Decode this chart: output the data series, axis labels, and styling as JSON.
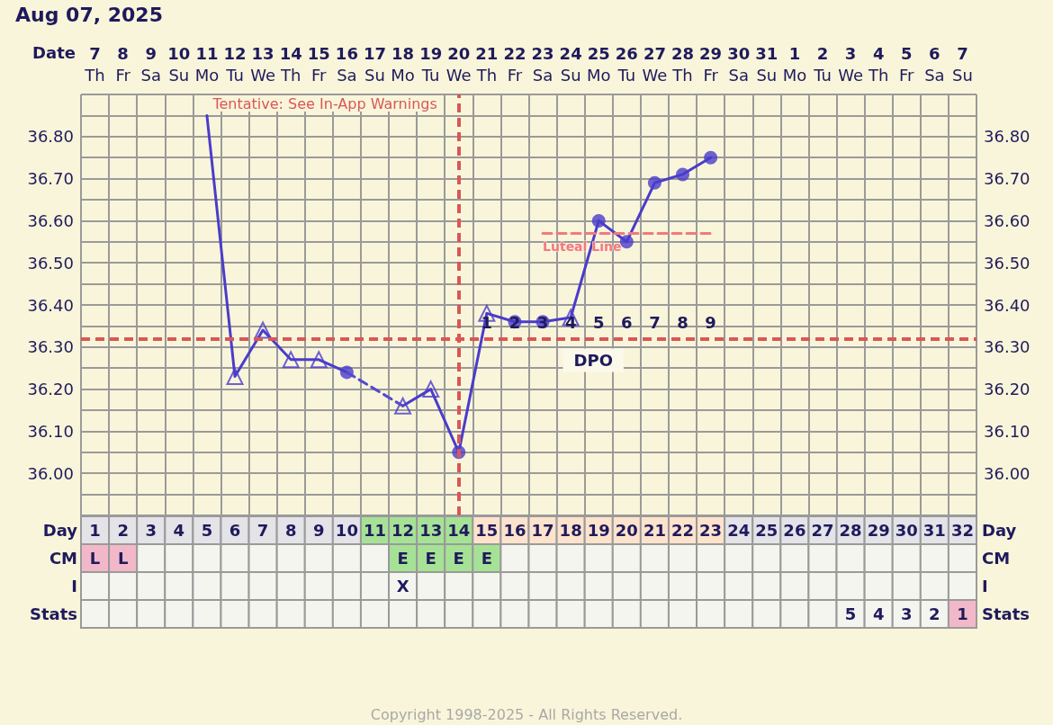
{
  "chart_data": [
    {
      "type": "line",
      "title": "Aug 07, 2025",
      "xlabel": "Date",
      "categories": [
        "7\nTh",
        "8\nFr",
        "9\nSa",
        "10\nSu",
        "11\nMo",
        "12\nTu",
        "13\nWe",
        "14\nTh",
        "15\nFr",
        "16\nSa",
        "17\nSu",
        "18\nMo",
        "19\nTu",
        "20\nWe",
        "21\nTh",
        "22\nFr",
        "23\nSa",
        "24\nSu",
        "25\nMo",
        "26\nTu",
        "27\nWe",
        "28\nTh",
        "29\nFr",
        "30\nSa",
        "31\nSu",
        "1\nMo",
        "2\nTu",
        "3\nWe",
        "4\nTh",
        "5\nFr",
        "6\nSa",
        "7\nSu"
      ],
      "ylim": [
        35.9,
        36.9
      ],
      "yticks": [
        {
          "value": 35.9,
          "label": null
        },
        {
          "value": 35.95,
          "label": null
        },
        {
          "value": 36.0,
          "label": "36.00"
        },
        {
          "value": 36.05,
          "label": null
        },
        {
          "value": 36.1,
          "label": "36.10"
        },
        {
          "value": 36.15,
          "label": null
        },
        {
          "value": 36.2,
          "label": "36.20"
        },
        {
          "value": 36.25,
          "label": null
        },
        {
          "value": 36.3,
          "label": "36.30"
        },
        {
          "value": 36.35,
          "label": null
        },
        {
          "value": 36.4,
          "label": "36.40"
        },
        {
          "value": 36.45,
          "label": null
        },
        {
          "value": 36.5,
          "label": "36.50"
        },
        {
          "value": 36.55,
          "label": null
        },
        {
          "value": 36.6,
          "label": "36.60"
        },
        {
          "value": 36.65,
          "label": null
        },
        {
          "value": 36.7,
          "label": "36.70"
        },
        {
          "value": 36.75,
          "label": null
        },
        {
          "value": 36.8,
          "label": "36.80"
        },
        {
          "value": 36.85,
          "label": null
        },
        {
          "value": 36.9,
          "label": null
        }
      ],
      "y2lim": [
        35.9,
        36.9
      ],
      "y2ticks": [
        {
          "value": 35.9,
          "label": null
        },
        {
          "value": 35.95,
          "label": null
        },
        {
          "value": 36.0,
          "label": "36.00"
        },
        {
          "value": 36.05,
          "label": null
        },
        {
          "value": 36.1,
          "label": "36.10"
        },
        {
          "value": 36.15,
          "label": null
        },
        {
          "value": 36.2,
          "label": "36.20"
        },
        {
          "value": 36.25,
          "label": null
        },
        {
          "value": 36.3,
          "label": "36.30"
        },
        {
          "value": 36.35,
          "label": null
        },
        {
          "value": 36.4,
          "label": "36.40"
        },
        {
          "value": 36.45,
          "label": null
        },
        {
          "value": 36.5,
          "label": "36.50"
        },
        {
          "value": 36.55,
          "label": null
        },
        {
          "value": 36.6,
          "label": "36.60"
        },
        {
          "value": 36.65,
          "label": null
        },
        {
          "value": 36.7,
          "label": "36.70"
        },
        {
          "value": 36.75,
          "label": null
        },
        {
          "value": 36.8,
          "label": "36.80"
        },
        {
          "value": 36.85,
          "label": null
        },
        {
          "value": 36.9,
          "label": null
        }
      ],
      "grid": true,
      "series": [
        {
          "color": "#4a3ccb",
          "marker": "none",
          "line_style": "solid",
          "values": [
            null,
            null,
            null,
            null,
            36.85,
            36.23,
            36.34,
            36.27,
            36.27,
            36.24,
            null,
            36.16,
            36.2,
            36.05,
            36.38,
            36.36,
            36.36,
            36.37,
            36.6,
            36.55,
            36.69,
            36.71,
            36.75,
            null,
            null,
            null,
            null,
            null,
            null,
            null,
            null,
            null
          ]
        },
        {
          "color": "#5549cf",
          "marker": "none",
          "line_style": "dashed",
          "x": [
            "16\nSa",
            "18\nMo"
          ],
          "values": [
            36.24,
            36.16
          ]
        },
        {
          "type": "scatter",
          "color": "#4a3ccb",
          "marker": "triangle",
          "values": [
            null,
            null,
            null,
            null,
            null,
            36.23,
            36.34,
            36.27,
            36.27,
            null,
            null,
            36.16,
            36.2,
            null,
            36.38,
            null,
            null,
            36.37,
            null,
            null,
            null,
            null,
            null,
            null,
            null,
            null,
            null,
            null,
            null,
            null,
            null,
            null
          ]
        },
        {
          "type": "scatter",
          "color": "#4a3ccb",
          "marker": "circle",
          "values": [
            null,
            null,
            null,
            null,
            null,
            null,
            null,
            null,
            null,
            36.24,
            null,
            null,
            null,
            36.05,
            null,
            36.36,
            36.36,
            null,
            36.6,
            36.55,
            36.69,
            36.71,
            36.75,
            null,
            null,
            null,
            null,
            null,
            null,
            null,
            null,
            null
          ]
        },
        {
          "type": "line",
          "name": "Luteal Line",
          "color": "#f27a7a",
          "marker": "none",
          "line_style": "dashed",
          "x": [
            "23\nSa",
            "29\nFr"
          ],
          "values": [
            36.57,
            36.57
          ]
        }
      ],
      "ref_lines": [
        {
          "axis": "y",
          "value": 36.32,
          "color": "#d95757",
          "line_style": "dashed"
        },
        {
          "axis": "x",
          "value": "20\nWe",
          "label": "Tentative: See In-App Warnings",
          "color": "#d95757",
          "line_style": "dashed"
        }
      ],
      "annotations": [
        "1",
        "2",
        "3",
        "4",
        "5",
        "6",
        "7",
        "8",
        "9",
        "DPO"
      ]
    },
    {
      "type": "heatmap",
      "categories": [
        null,
        null,
        null,
        null,
        null,
        null,
        null,
        null,
        null,
        null,
        null,
        null,
        null,
        null,
        null,
        null,
        null,
        null,
        null,
        null,
        null,
        null,
        null,
        null,
        null,
        null,
        null,
        null,
        null,
        null,
        null,
        null
      ],
      "y_categories": [
        "Day"
      ],
      "y2_categories": [
        "Day"
      ],
      "data_labels": true,
      "cells": [
        [
          1,
          2,
          3,
          4,
          5,
          6,
          7,
          8,
          9,
          10,
          11,
          12,
          13,
          14,
          15,
          16,
          17,
          18,
          19,
          20,
          21,
          22,
          23,
          24,
          25,
          26,
          27,
          28,
          29,
          30,
          31,
          32
        ]
      ],
      "colors": [
        [
          "#e3e3e8",
          "#e3e3e8",
          "#e3e3e8",
          "#e3e3e8",
          "#e3e3e8",
          "#e3e3e8",
          "#e3e3e8",
          "#e3e3e8",
          "#e3e3e8",
          "#e3e3e8",
          "#a6e295",
          "#a6e295",
          "#a6e295",
          "#a6e295",
          "#fde3cc",
          "#fde3cc",
          "#fde3cc",
          "#fde3cc",
          "#fde3cc",
          "#fde3cc",
          "#fde3cc",
          "#fde3cc",
          "#fde3cc",
          "#e3e3e8",
          "#e3e3e8",
          "#e3e3e8",
          "#e3e3e8",
          "#e3e3e8",
          "#e3e3e8",
          "#e3e3e8",
          "#e3e3e8",
          "#e3e3e8"
        ]
      ]
    },
    {
      "type": "heatmap",
      "categories": [
        null,
        null,
        null,
        null,
        null,
        null,
        null,
        null,
        null,
        null,
        null,
        null,
        null,
        null,
        null,
        null,
        null,
        null,
        null,
        null,
        null,
        null,
        null,
        null,
        null,
        null,
        null,
        null,
        null,
        null,
        null,
        null
      ],
      "y_categories": [
        "CM",
        "I"
      ],
      "y2_categories": [
        "CM",
        "I"
      ],
      "cells": [
        [
          null,
          null,
          null,
          null,
          null,
          null,
          null,
          null,
          null,
          null,
          null,
          null,
          null,
          null,
          null,
          null,
          null,
          null,
          null,
          null,
          null,
          null,
          null,
          null,
          null,
          null,
          null,
          null,
          null,
          null,
          null,
          null
        ],
        [
          null,
          null,
          null,
          null,
          null,
          null,
          null,
          null,
          null,
          null,
          null,
          null,
          null,
          null,
          null,
          null,
          null,
          null,
          null,
          null,
          null,
          null,
          null,
          null,
          null,
          null,
          null,
          null,
          null,
          null,
          null,
          null
        ]
      ],
      "cell_labels": [
        [
          "L",
          "L",
          null,
          null,
          null,
          null,
          null,
          null,
          null,
          null,
          null,
          "E",
          "E",
          "E",
          "E",
          null,
          null,
          null,
          null,
          null,
          null,
          null,
          null,
          null,
          null,
          null,
          null,
          null,
          null,
          null,
          null,
          null
        ],
        [
          null,
          null,
          null,
          null,
          null,
          null,
          null,
          null,
          null,
          null,
          null,
          "X",
          null,
          null,
          null,
          null,
          null,
          null,
          null,
          null,
          null,
          null,
          null,
          null,
          null,
          null,
          null,
          null,
          null,
          null,
          null,
          null
        ]
      ],
      "colors": [
        [
          "#f2b8c9",
          "#f2b8c9",
          "#f5f5f0",
          "#f5f5f0",
          "#f5f5f0",
          "#f5f5f0",
          "#f5f5f0",
          "#f5f5f0",
          "#f5f5f0",
          "#f5f5f0",
          "#f5f5f0",
          "#a6e295",
          "#a6e295",
          "#a6e295",
          "#a6e295",
          "#f5f5f0",
          "#f5f5f0",
          "#f5f5f0",
          "#f5f5f0",
          "#f5f5f0",
          "#f5f5f0",
          "#f5f5f0",
          "#f5f5f0",
          "#f5f5f0",
          "#f5f5f0",
          "#f5f5f0",
          "#f5f5f0",
          "#f5f5f0",
          "#f5f5f0",
          "#f5f5f0",
          "#f5f5f0",
          "#f5f5f0"
        ],
        [
          "#f5f5f0",
          "#f5f5f0",
          "#f5f5f0",
          "#f5f5f0",
          "#f5f5f0",
          "#f5f5f0",
          "#f5f5f0",
          "#f5f5f0",
          "#f5f5f0",
          "#f5f5f0",
          "#f5f5f0",
          "#f5f5f0",
          "#f5f5f0",
          "#f5f5f0",
          "#f5f5f0",
          "#f5f5f0",
          "#f5f5f0",
          "#f5f5f0",
          "#f5f5f0",
          "#f5f5f0",
          "#f5f5f0",
          "#f5f5f0",
          "#f5f5f0",
          "#f5f5f0",
          "#f5f5f0",
          "#f5f5f0",
          "#f5f5f0",
          "#f5f5f0",
          "#f5f5f0",
          "#f5f5f0",
          "#f5f5f0",
          "#f5f5f0"
        ]
      ]
    },
    {
      "type": "heatmap",
      "categories": [
        null,
        null,
        null,
        null,
        null,
        null,
        null,
        null,
        null,
        null,
        null,
        null,
        null,
        null,
        null,
        null,
        null,
        null,
        null,
        null,
        null,
        null,
        null,
        null,
        null,
        null,
        null,
        null,
        null,
        null,
        null,
        null
      ],
      "y_categories": [
        "Stats"
      ],
      "y2_categories": [
        "Stats"
      ],
      "data_labels": true,
      "cells": [
        [
          null,
          null,
          null,
          null,
          null,
          null,
          null,
          null,
          null,
          null,
          null,
          null,
          null,
          null,
          null,
          null,
          null,
          null,
          null,
          null,
          null,
          null,
          null,
          null,
          null,
          null,
          null,
          5,
          4,
          3,
          2,
          1
        ]
      ],
      "colors": [
        [
          "#f5f5f0",
          "#f5f5f0",
          "#f5f5f0",
          "#f5f5f0",
          "#f5f5f0",
          "#f5f5f0",
          "#f5f5f0",
          "#f5f5f0",
          "#f5f5f0",
          "#f5f5f0",
          "#f5f5f0",
          "#f5f5f0",
          "#f5f5f0",
          "#f5f5f0",
          "#f5f5f0",
          "#f5f5f0",
          "#f5f5f0",
          "#f5f5f0",
          "#f5f5f0",
          "#f5f5f0",
          "#f5f5f0",
          "#f5f5f0",
          "#f5f5f0",
          "#f5f5f0",
          "#f5f5f0",
          "#f5f5f0",
          "#f5f5f0",
          "#f5f5f0",
          "#f5f5f0",
          "#f5f5f0",
          "#f5f5f0",
          "#f2b8c9"
        ]
      ],
      "annotations": [
        "Copyright 1998-2025 - All Rights Reserved."
      ]
    }
  ]
}
